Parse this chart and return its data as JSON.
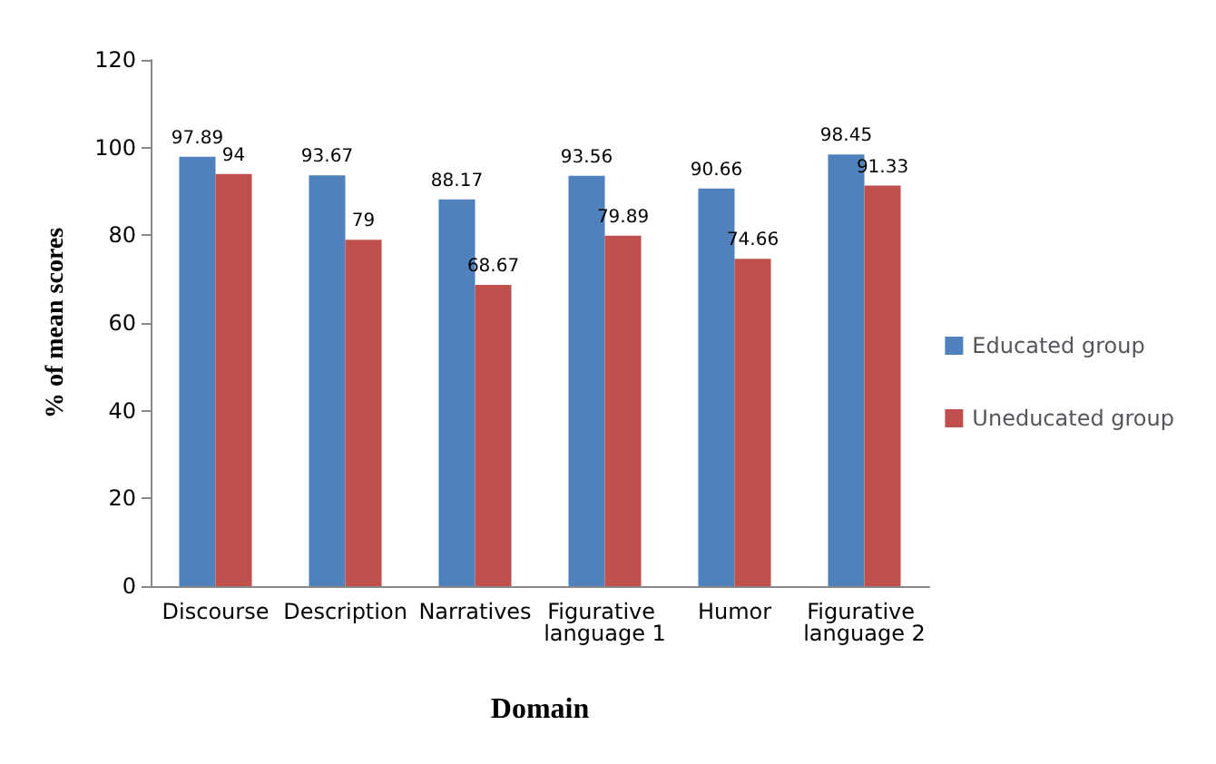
{
  "chart_data": {
    "type": "bar",
    "xlabel": "Domain",
    "ylabel": "% of mean scores",
    "categories": [
      "Discourse",
      "Description",
      "Narratives",
      "Figurative language 1",
      "Humor",
      "Figurative language 2"
    ],
    "series": [
      {
        "name": "Educated group",
        "color": "#4f81bd",
        "values": [
          97.89,
          93.67,
          88.17,
          93.56,
          90.66,
          98.45
        ]
      },
      {
        "name": "Uneducated group",
        "color": "#c0504d",
        "values": [
          94,
          79,
          68.67,
          79.89,
          74.66,
          91.33
        ]
      }
    ],
    "ylim": [
      0,
      120
    ],
    "yticks": [
      0,
      20,
      40,
      60,
      80,
      100,
      120
    ],
    "data_labels": true,
    "legend": "right"
  }
}
